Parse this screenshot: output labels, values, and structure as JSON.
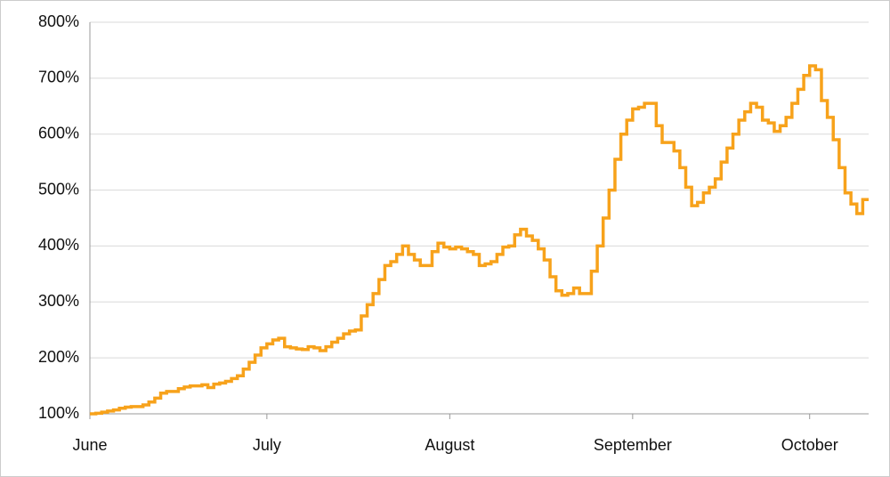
{
  "chart_data": {
    "type": "line",
    "step": true,
    "grid": true,
    "categories": [
      "June",
      null,
      null,
      null,
      null,
      null,
      null,
      null,
      null,
      null,
      null,
      null,
      null,
      null,
      null,
      null,
      null,
      null,
      null,
      null,
      null,
      null,
      null,
      null,
      null,
      null,
      null,
      null,
      null,
      null,
      "July",
      null,
      null,
      null,
      null,
      null,
      null,
      null,
      null,
      null,
      null,
      null,
      null,
      null,
      null,
      null,
      null,
      null,
      null,
      null,
      null,
      null,
      null,
      null,
      null,
      null,
      null,
      null,
      null,
      null,
      null,
      "August",
      null,
      null,
      null,
      null,
      null,
      null,
      null,
      null,
      null,
      null,
      null,
      null,
      null,
      null,
      null,
      null,
      null,
      null,
      null,
      null,
      null,
      null,
      null,
      null,
      null,
      null,
      null,
      null,
      null,
      null,
      "September",
      null,
      null,
      null,
      null,
      null,
      null,
      null,
      null,
      null,
      null,
      null,
      null,
      null,
      null,
      null,
      null,
      null,
      null,
      null,
      null,
      null,
      null,
      null,
      null,
      null,
      null,
      null,
      null,
      null,
      "October",
      null,
      null,
      null,
      null,
      null,
      null,
      null,
      null,
      null,
      null
    ],
    "series": [
      {
        "color": "#f7a21b",
        "values": [
          100,
          101,
          103,
          105,
          107,
          110,
          112,
          113,
          113,
          116,
          121,
          128,
          137,
          140,
          140,
          145,
          148,
          150,
          150,
          152,
          147,
          153,
          155,
          158,
          163,
          168,
          180,
          192,
          205,
          218,
          225,
          232,
          235,
          220,
          218,
          216,
          215,
          220,
          218,
          213,
          220,
          228,
          235,
          243,
          248,
          250,
          275,
          295,
          315,
          340,
          365,
          372,
          385,
          400,
          385,
          375,
          365,
          365,
          390,
          405,
          398,
          395,
          398,
          395,
          390,
          385,
          365,
          368,
          372,
          385,
          398,
          400,
          420,
          430,
          418,
          410,
          395,
          375,
          345,
          320,
          312,
          315,
          325,
          315,
          315,
          355,
          400,
          450,
          500,
          555,
          600,
          625,
          645,
          648,
          655,
          655,
          615,
          585,
          585,
          570,
          540,
          505,
          472,
          478,
          495,
          505,
          520,
          550,
          575,
          600,
          625,
          640,
          655,
          648,
          625,
          620,
          605,
          615,
          630,
          655,
          680,
          705,
          722,
          715,
          660,
          630,
          590,
          540,
          495,
          475,
          458,
          483,
          483
        ]
      }
    ],
    "ylim": [
      100,
      800
    ],
    "yticks": [
      {
        "value": 100,
        "label": "100%"
      },
      {
        "value": 200,
        "label": "200%"
      },
      {
        "value": 300,
        "label": "300%"
      },
      {
        "value": 400,
        "label": "400%"
      },
      {
        "value": 500,
        "label": "500%"
      },
      {
        "value": 600,
        "label": "600%"
      },
      {
        "value": 700,
        "label": "700%"
      },
      {
        "value": 800,
        "label": "800%"
      }
    ]
  }
}
